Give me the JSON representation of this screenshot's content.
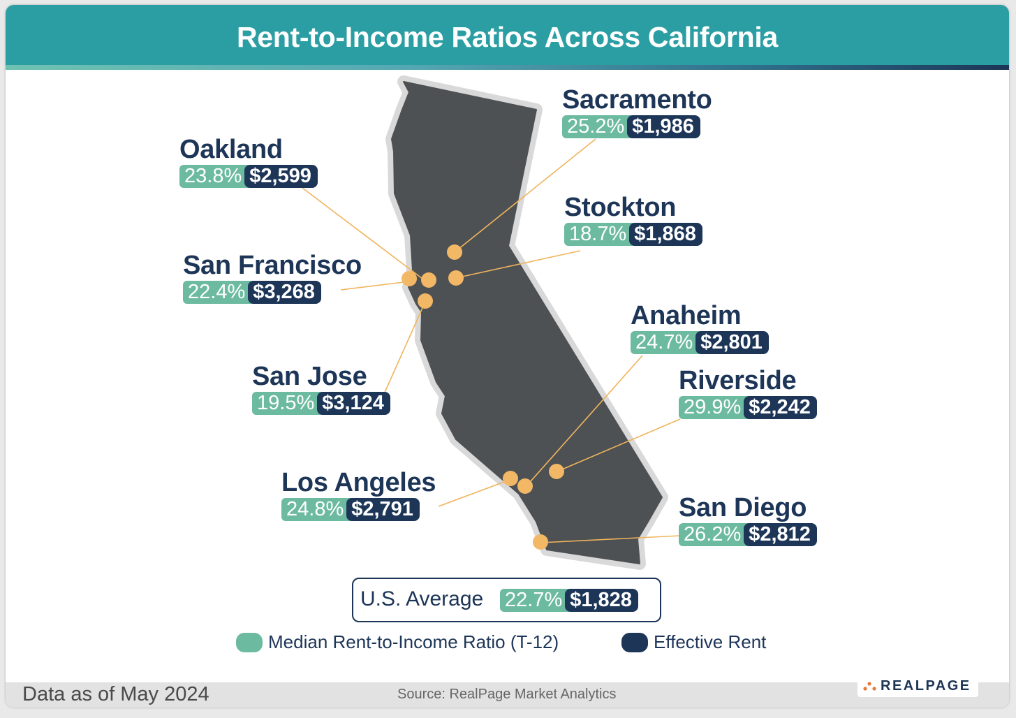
{
  "header": {
    "title": "Rent-to-Income Ratios Across California"
  },
  "colors": {
    "header_bg": "#2b9ea4",
    "ratio_pill": "#6cbaa0",
    "rent_pill": "#1d3557",
    "map_fill": "#4d5154",
    "map_outline": "#d9d9d9",
    "marker": "#f2b866",
    "leader_line": "#f0b45c"
  },
  "cities": [
    {
      "key": "sacramento",
      "name": "Sacramento",
      "ratio": "25.2%",
      "rent": "$1,986"
    },
    {
      "key": "oakland",
      "name": "Oakland",
      "ratio": "23.8%",
      "rent": "$2,599"
    },
    {
      "key": "stockton",
      "name": "Stockton",
      "ratio": "18.7%",
      "rent": "$1,868"
    },
    {
      "key": "san_francisco",
      "name": "San Francisco",
      "ratio": "22.4%",
      "rent": "$3,268"
    },
    {
      "key": "anaheim",
      "name": "Anaheim",
      "ratio": "24.7%",
      "rent": "$2,801"
    },
    {
      "key": "san_jose",
      "name": "San Jose",
      "ratio": "19.5%",
      "rent": "$3,124"
    },
    {
      "key": "riverside",
      "name": "Riverside",
      "ratio": "29.9%",
      "rent": "$2,242"
    },
    {
      "key": "los_angeles",
      "name": "Los Angeles",
      "ratio": "24.8%",
      "rent": "$2,791"
    },
    {
      "key": "san_diego",
      "name": "San Diego",
      "ratio": "26.2%",
      "rent": "$2,812"
    }
  ],
  "us_average": {
    "label": "U.S. Average",
    "ratio": "22.7%",
    "rent": "$1,828"
  },
  "legend": {
    "ratio_label": "Median Rent-to-Income Ratio (T-12)",
    "rent_label": "Effective Rent"
  },
  "footer": {
    "date_note": "Data as of May 2024",
    "source": "Source: RealPage Market Analytics",
    "logo_text": "REALPAGE"
  }
}
